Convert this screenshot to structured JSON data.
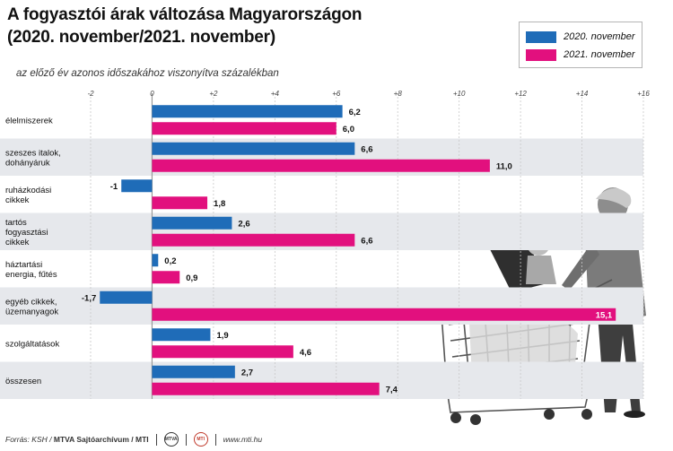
{
  "chart_data": {
    "type": "bar",
    "orientation": "horizontal",
    "title_lines": [
      "A fogyasztói árak változása Magyarországon",
      "(2020. november/2021. november)"
    ],
    "subtitle": "az előző év azonos időszakához viszonyítva százalékban",
    "categories": [
      [
        "élelmiszerek"
      ],
      [
        "szeszes italok,",
        "dohányáruk"
      ],
      [
        "ruházkodási",
        "cikkek"
      ],
      [
        "tartós",
        "fogyasztási",
        "cikkek"
      ],
      [
        "háztartási",
        "energia, fűtés"
      ],
      [
        "egyéb cikkek,",
        "üzemanyagok"
      ],
      [
        "szolgáltatások"
      ],
      [
        "összesen"
      ]
    ],
    "series": [
      {
        "name": "2020. november",
        "color": "#1f6cb8",
        "values": [
          6.2,
          6.6,
          -1,
          2.6,
          0.2,
          -1.7,
          1.9,
          2.7
        ],
        "labels": [
          "6,2",
          "6,6",
          "-1",
          "2,6",
          "0,2",
          "-1,7",
          "1,9",
          "2,7"
        ]
      },
      {
        "name": "2021. november",
        "color": "#e2107e",
        "values": [
          6.0,
          11.0,
          1.8,
          6.6,
          0.9,
          15.1,
          4.6,
          7.4
        ],
        "labels": [
          "6,0",
          "11,0",
          "1,8",
          "6,6",
          "0,9",
          "15,1",
          "4,6",
          "7,4"
        ]
      }
    ],
    "xlim": [
      -2,
      16
    ],
    "ticks": [
      -2,
      0,
      2,
      4,
      6,
      8,
      10,
      12,
      14,
      16
    ],
    "tick_labels": [
      "-2",
      "0",
      "+2",
      "+4",
      "+6",
      "+8",
      "+10",
      "+12",
      "+14",
      "+16"
    ],
    "legend_position": "top-right"
  },
  "footer": {
    "source": "Forrás: KSH /",
    "archive": "MTVA Sajtóarchívum / MTI",
    "logo1": "MTVA",
    "logo2": "MTI",
    "url": "www.mti.hu"
  }
}
